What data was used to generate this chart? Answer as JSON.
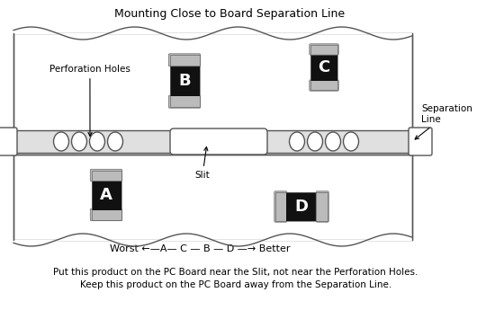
{
  "title": "Mounting Close to Board Separation Line",
  "footer_line1": "Put this product on the PC Board near the Slit, not near the Perforation Holes.",
  "footer_line2": "Keep this product on the PC Board away from the Separation Line.",
  "ranking_text": "Worst ←—A— C — B — D —→ Better",
  "label_perforation": "Perforation Holes",
  "label_slit": "Slit",
  "label_separation": "Separation\nLine",
  "bg_color": "#ffffff",
  "board_edge_color": "#555555",
  "smd_body_color": "#111111",
  "smd_cap_color": "#bbbbbb"
}
